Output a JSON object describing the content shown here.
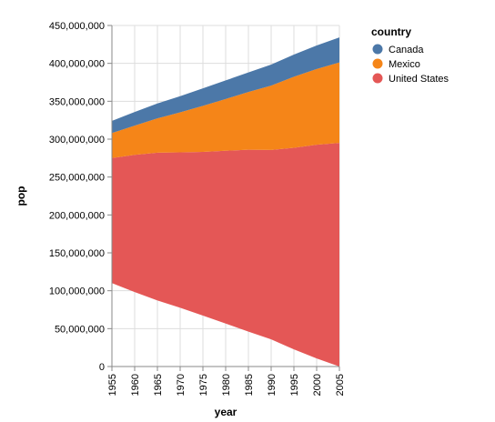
{
  "chart_data": {
    "type": "area",
    "xlabel": "year",
    "ylabel": "pop",
    "x": [
      1955,
      1960,
      1965,
      1970,
      1975,
      1980,
      1985,
      1990,
      1995,
      2000,
      2005
    ],
    "xlim": [
      1955,
      2005
    ],
    "ylim": [
      0,
      450000000
    ],
    "y_ticks": [
      0,
      50000000,
      100000000,
      150000000,
      200000000,
      250000000,
      300000000,
      350000000,
      400000000,
      450000000
    ],
    "y_tick_labels": [
      "0",
      "50,000,000",
      "100,000,000",
      "150,000,000",
      "200,000,000",
      "250,000,000",
      "300,000,000",
      "350,000,000",
      "400,000,000",
      "450,000,000"
    ],
    "x_tick_labels": [
      "1955",
      "1960",
      "1965",
      "1970",
      "1975",
      "1980",
      "1985",
      "1990",
      "1995",
      "2000",
      "2005"
    ],
    "stack_offset": "center",
    "grid": true,
    "legend": {
      "title": "country",
      "position": "right"
    },
    "series": [
      {
        "name": "Canada",
        "color": "#4c78a8",
        "values": [
          16000000,
          18000000,
          19700000,
          21300000,
          23100000,
          24500000,
          25800000,
          27700000,
          29300000,
          31100000,
          33000000
        ]
      },
      {
        "name": "Mexico",
        "color": "#f58518",
        "values": [
          33000000,
          38600000,
          45300000,
          52800000,
          60700000,
          68300000,
          76200000,
          84900000,
          93700000,
          99900000,
          106200000
        ]
      },
      {
        "name": "United States",
        "color": "#e45756",
        "values": [
          165000000,
          181000000,
          195000000,
          205000000,
          216000000,
          228000000,
          240000000,
          250000000,
          266000000,
          282000000,
          295000000
        ]
      }
    ]
  }
}
